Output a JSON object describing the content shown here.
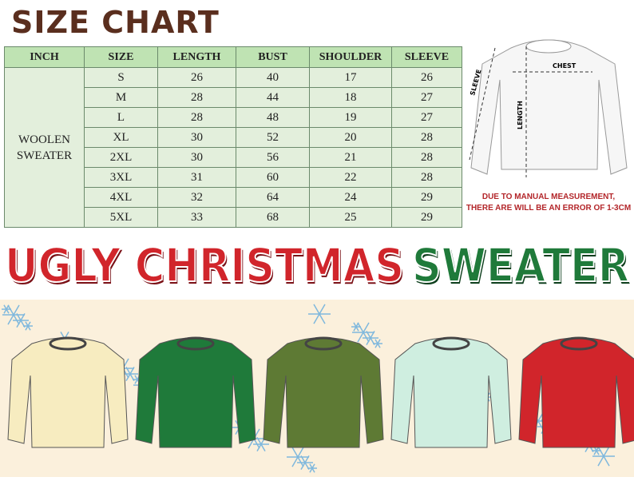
{
  "title": "SIZE CHART",
  "table": {
    "headers": [
      "INCH",
      "SIZE",
      "LENGTH",
      "BUST",
      "SHOULDER",
      "SLEEVE"
    ],
    "category_line1": "WOOLEN",
    "category_line2": "SWEATER",
    "rows": [
      [
        "S",
        "26",
        "40",
        "17",
        "26"
      ],
      [
        "M",
        "28",
        "44",
        "18",
        "27"
      ],
      [
        "L",
        "28",
        "48",
        "19",
        "27"
      ],
      [
        "XL",
        "30",
        "52",
        "20",
        "28"
      ],
      [
        "2XL",
        "30",
        "56",
        "21",
        "28"
      ],
      [
        "3XL",
        "31",
        "60",
        "22",
        "28"
      ],
      [
        "4XL",
        "32",
        "64",
        "24",
        "29"
      ],
      [
        "5XL",
        "33",
        "68",
        "25",
        "29"
      ]
    ]
  },
  "diagram": {
    "chest": "CHEST",
    "length": "LENGTH",
    "sleeve": "SLEEVE"
  },
  "note": {
    "line1": "DUE TO MANUAL MEASUREMENT,",
    "line2": "THERE ARE WILL BE AN ERROR OF 1-3CM"
  },
  "banner": {
    "red": "UGLY CHRISTMAS",
    "green": "SWEATER"
  },
  "sweaters": [
    {
      "name": "christmas-tree",
      "color": "#f7ecc0"
    },
    {
      "name": "polar-bear",
      "color": "#1f7a3a"
    },
    {
      "name": "reindeer",
      "color": "#5e7a34"
    },
    {
      "name": "fair-isle",
      "color": "#cfeee0"
    },
    {
      "name": "elf",
      "color": "#d1252b"
    }
  ]
}
